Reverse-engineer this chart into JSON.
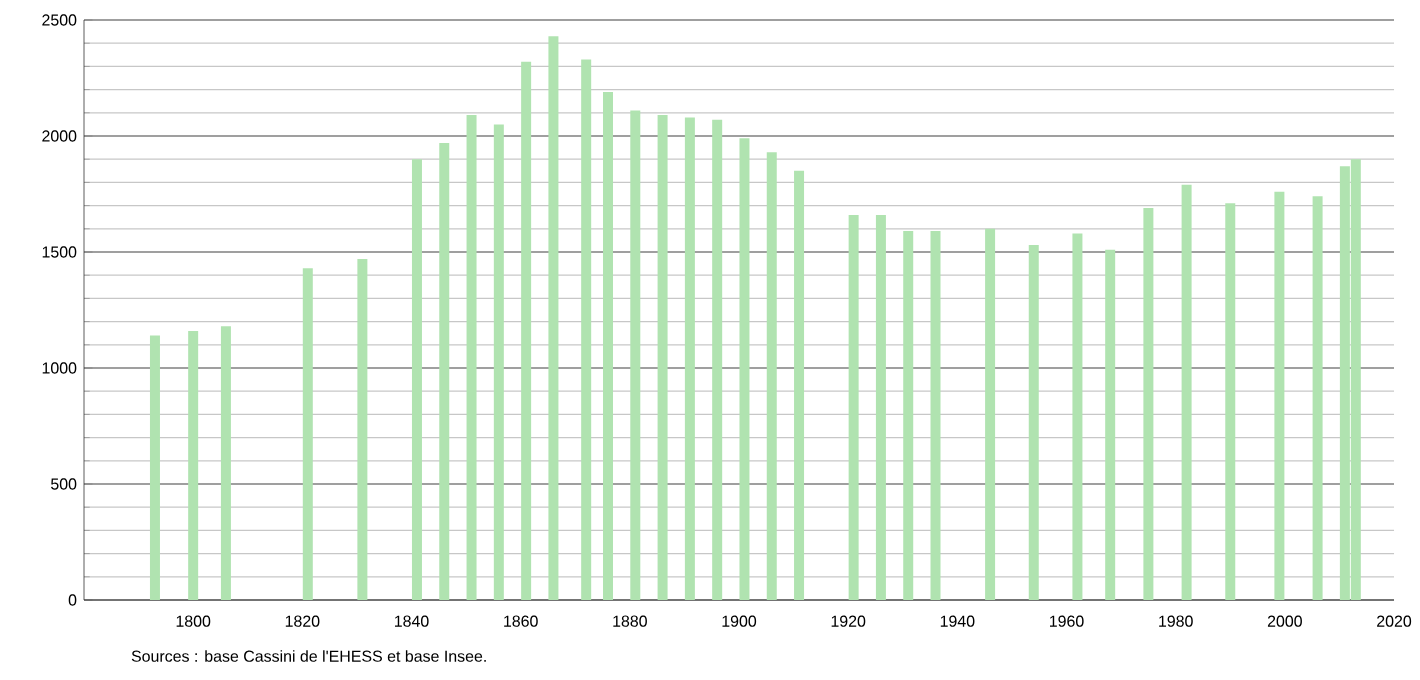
{
  "chart_data": {
    "type": "bar",
    "x": [
      1793,
      1800,
      1806,
      1821,
      1831,
      1841,
      1846,
      1851,
      1856,
      1861,
      1866,
      1872,
      1876,
      1881,
      1886,
      1891,
      1896,
      1901,
      1906,
      1911,
      1921,
      1926,
      1931,
      1936,
      1946,
      1954,
      1962,
      1968,
      1975,
      1982,
      1990,
      1999,
      2006,
      2011,
      2013
    ],
    "values": [
      1140,
      1160,
      1180,
      1430,
      1470,
      1900,
      1970,
      2090,
      2050,
      2320,
      2430,
      2330,
      2190,
      2110,
      2090,
      2080,
      2070,
      1990,
      1930,
      1850,
      1660,
      1660,
      1590,
      1590,
      1600,
      1530,
      1580,
      1510,
      1690,
      1790,
      1710,
      1760,
      1740,
      1870,
      1900
    ],
    "color": "#b0e3b0",
    "xlim": [
      1780,
      2020
    ],
    "xticks": [
      1800,
      1820,
      1840,
      1860,
      1880,
      1900,
      1920,
      1940,
      1960,
      1980,
      2000,
      2020
    ],
    "ylim": [
      0,
      2500
    ],
    "yticks": [
      0,
      500,
      1000,
      1500,
      2000,
      2500
    ],
    "grid": "y",
    "annotations": [
      "Sources : base Cassini de l'EHESS et base Insee."
    ]
  }
}
